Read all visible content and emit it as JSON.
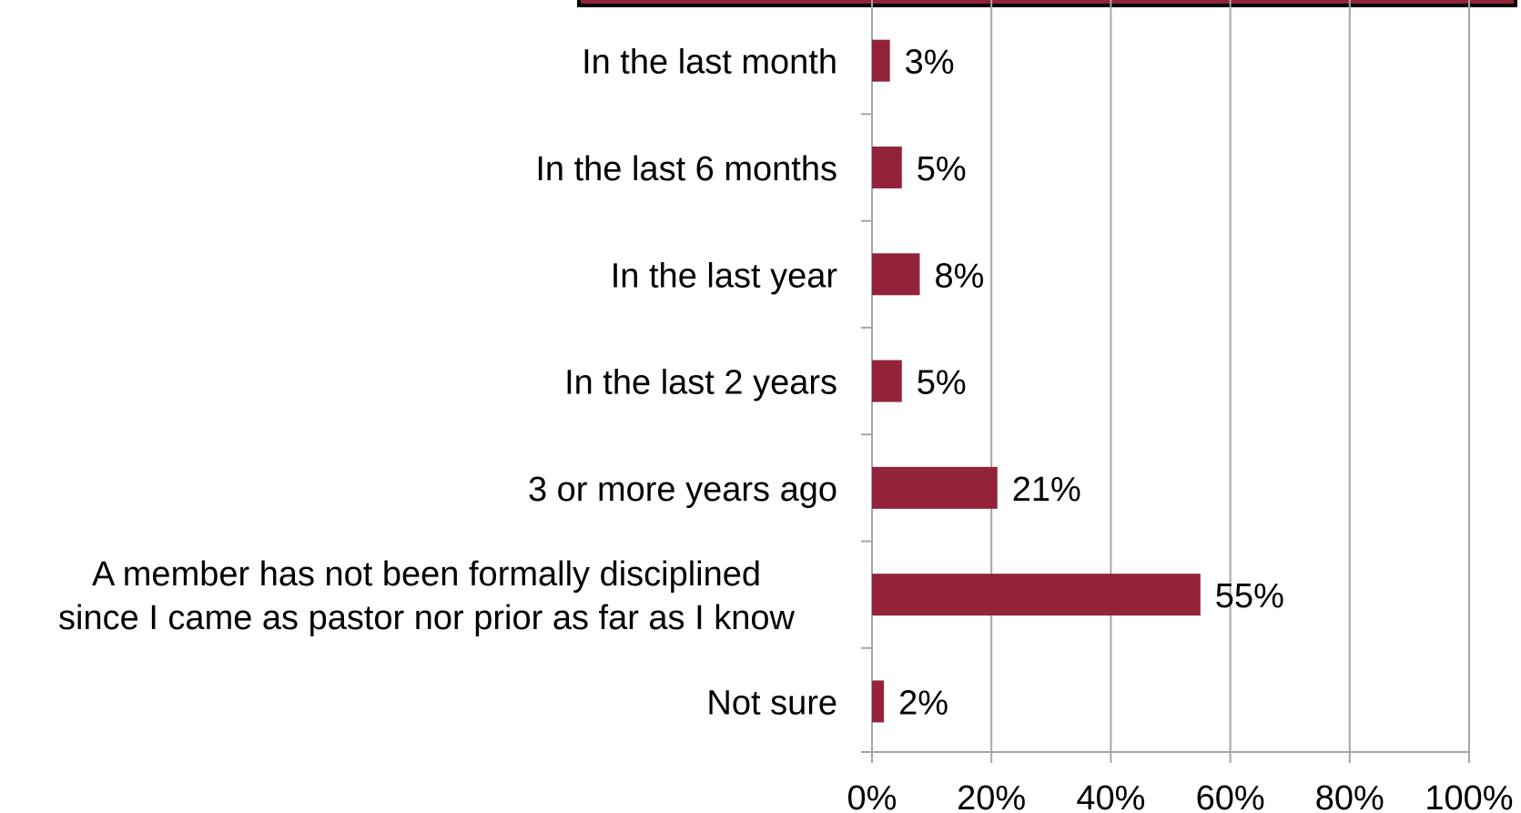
{
  "chart_data": {
    "type": "bar",
    "orientation": "horizontal",
    "categories": [
      [
        "In the last month"
      ],
      [
        "In the last 6 months"
      ],
      [
        "In the last year"
      ],
      [
        "In the last 2 years"
      ],
      [
        "3 or more years ago"
      ],
      [
        "A member has not been formally disciplined",
        "since I came as pastor nor prior as far as I know"
      ],
      [
        "Not sure"
      ]
    ],
    "values": [
      3,
      5,
      8,
      5,
      21,
      55,
      2
    ],
    "value_labels": [
      "3%",
      "5%",
      "8%",
      "5%",
      "21%",
      "55%",
      "2%"
    ],
    "xlim": [
      0,
      100
    ],
    "x_ticks": [
      0,
      20,
      40,
      60,
      80,
      100
    ],
    "x_tick_labels": [
      "0%",
      "20%",
      "40%",
      "60%",
      "80%",
      "100%"
    ],
    "grid": "vertical",
    "legend": "none",
    "title": "",
    "xlabel": "",
    "ylabel": "",
    "colors": {
      "bar": "#92233a",
      "header_bar_fill": "#92233a",
      "header_bar_border": "#000000",
      "grid": "#a6a6a6",
      "axis": "#a6a6a6",
      "text": "#000000"
    }
  }
}
